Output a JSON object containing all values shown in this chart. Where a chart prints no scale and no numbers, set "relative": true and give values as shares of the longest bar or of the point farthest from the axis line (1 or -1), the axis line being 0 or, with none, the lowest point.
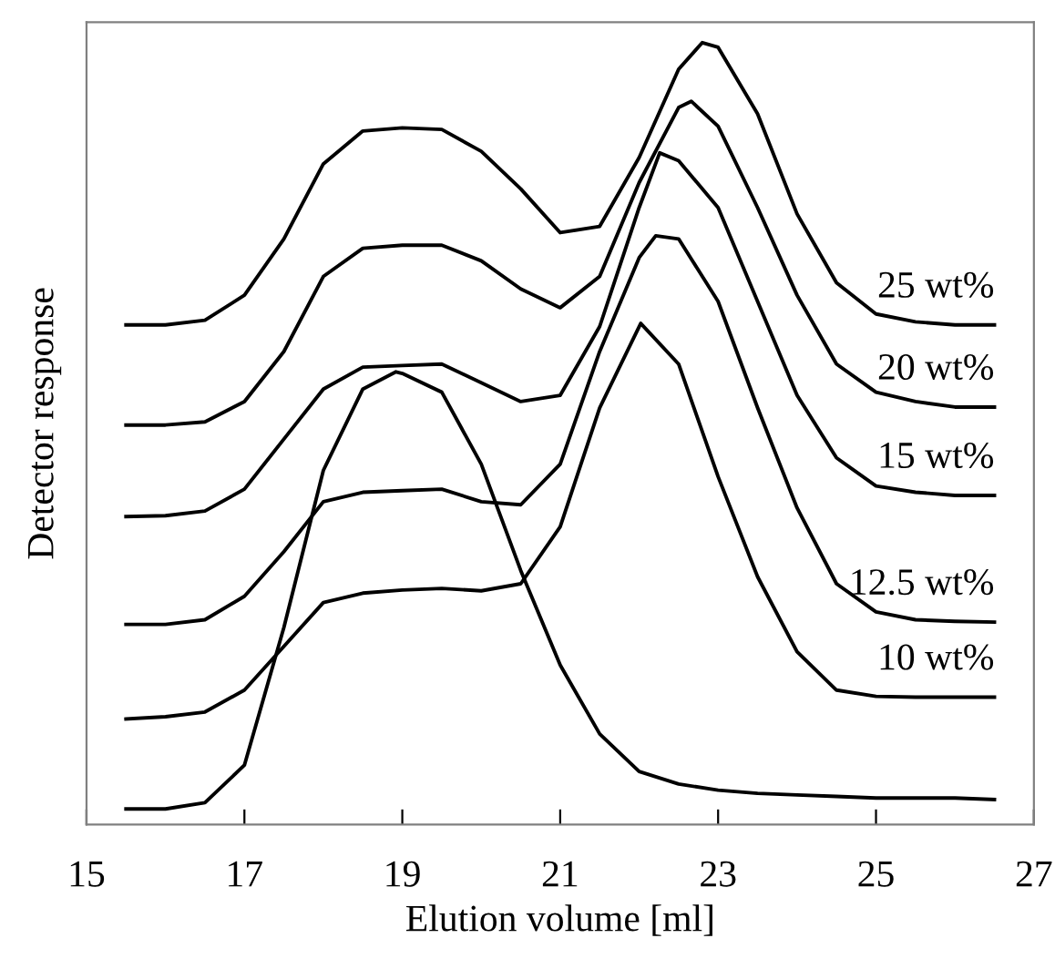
{
  "chart_data": {
    "type": "line",
    "xlabel": "Elution volume [ml]",
    "ylabel": "Detector response",
    "relative": true,
    "xlim": [
      15,
      27
    ],
    "xticks": [
      15,
      17,
      19,
      21,
      23,
      25,
      27
    ],
    "grid": false,
    "legend": false,
    "tick_labels": "x",
    "series": [
      {
        "name": "25 wt%",
        "color": "#000000",
        "x": [
          15.5,
          16,
          16.5,
          17,
          17.5,
          18,
          18.5,
          19,
          19.5,
          20,
          20.5,
          21,
          21.5,
          22,
          22.5,
          22.8,
          23,
          23.5,
          24,
          24.5,
          25,
          25.5,
          26,
          26.5
        ],
        "values": [
          0.639,
          0.639,
          0.645,
          0.677,
          0.749,
          0.845,
          0.887,
          0.891,
          0.889,
          0.861,
          0.813,
          0.757,
          0.765,
          0.853,
          0.966,
          1.0,
          0.994,
          0.909,
          0.781,
          0.693,
          0.653,
          0.643,
          0.639,
          0.639
        ]
      },
      {
        "name": "20 wt%",
        "color": "#000000",
        "x": [
          15.5,
          16,
          16.5,
          17,
          17.5,
          18,
          18.5,
          19,
          19.5,
          20,
          20.5,
          21,
          21.5,
          22,
          22.5,
          22.66,
          23,
          23.5,
          24,
          24.5,
          25,
          25.5,
          26,
          26.5
        ],
        "values": [
          0.511,
          0.511,
          0.515,
          0.541,
          0.605,
          0.701,
          0.737,
          0.741,
          0.741,
          0.721,
          0.685,
          0.661,
          0.701,
          0.821,
          0.917,
          0.925,
          0.893,
          0.789,
          0.677,
          0.589,
          0.553,
          0.541,
          0.534,
          0.534
        ]
      },
      {
        "name": "15 wt%",
        "color": "#000000",
        "x": [
          15.5,
          16,
          16.5,
          17,
          17.5,
          18,
          18.5,
          19,
          19.5,
          20,
          20.5,
          21,
          21.5,
          22,
          22.26,
          22.5,
          23,
          23.5,
          24,
          24.5,
          25,
          25.5,
          26,
          26.5
        ],
        "values": [
          0.394,
          0.395,
          0.401,
          0.429,
          0.493,
          0.557,
          0.585,
          0.587,
          0.589,
          0.565,
          0.541,
          0.549,
          0.637,
          0.789,
          0.859,
          0.849,
          0.789,
          0.669,
          0.549,
          0.469,
          0.433,
          0.425,
          0.421,
          0.421
        ]
      },
      {
        "name": "12.5 wt%",
        "color": "#000000",
        "x": [
          15.5,
          16,
          16.5,
          17,
          17.5,
          18,
          18.5,
          19,
          19.5,
          20,
          20.5,
          21,
          21.5,
          22,
          22.21,
          22.5,
          23,
          23.5,
          24,
          24.5,
          25,
          25.5,
          26,
          26.5
        ],
        "values": [
          0.256,
          0.256,
          0.262,
          0.292,
          0.349,
          0.413,
          0.425,
          0.427,
          0.429,
          0.413,
          0.409,
          0.461,
          0.605,
          0.725,
          0.753,
          0.749,
          0.669,
          0.533,
          0.405,
          0.308,
          0.272,
          0.262,
          0.26,
          0.259
        ]
      },
      {
        "name": "10 wt%",
        "color": "#000000",
        "x": [
          15.5,
          16,
          16.5,
          17,
          17.5,
          18,
          18.5,
          19,
          19.5,
          20,
          20.5,
          21,
          21.5,
          22.02,
          22.5,
          23,
          23.5,
          24,
          24.5,
          25,
          25.5,
          26,
          26.5
        ],
        "values": [
          0.135,
          0.138,
          0.144,
          0.172,
          0.228,
          0.284,
          0.296,
          0.3,
          0.302,
          0.299,
          0.308,
          0.381,
          0.533,
          0.641,
          0.589,
          0.445,
          0.317,
          0.221,
          0.172,
          0.164,
          0.163,
          0.163,
          0.163
        ]
      },
      {
        "color": "#000000",
        "x": [
          15.5,
          16,
          16.5,
          17,
          17.5,
          18,
          18.5,
          18.92,
          19,
          19.5,
          20,
          20.5,
          21,
          21.5,
          22,
          22.5,
          23,
          23.5,
          24,
          24.5,
          25,
          25.5,
          26,
          26.5
        ],
        "values": [
          0.02,
          0.02,
          0.028,
          0.076,
          0.252,
          0.453,
          0.557,
          0.579,
          0.577,
          0.553,
          0.461,
          0.325,
          0.204,
          0.116,
          0.068,
          0.052,
          0.044,
          0.04,
          0.038,
          0.036,
          0.034,
          0.034,
          0.034,
          0.032
        ]
      }
    ]
  }
}
